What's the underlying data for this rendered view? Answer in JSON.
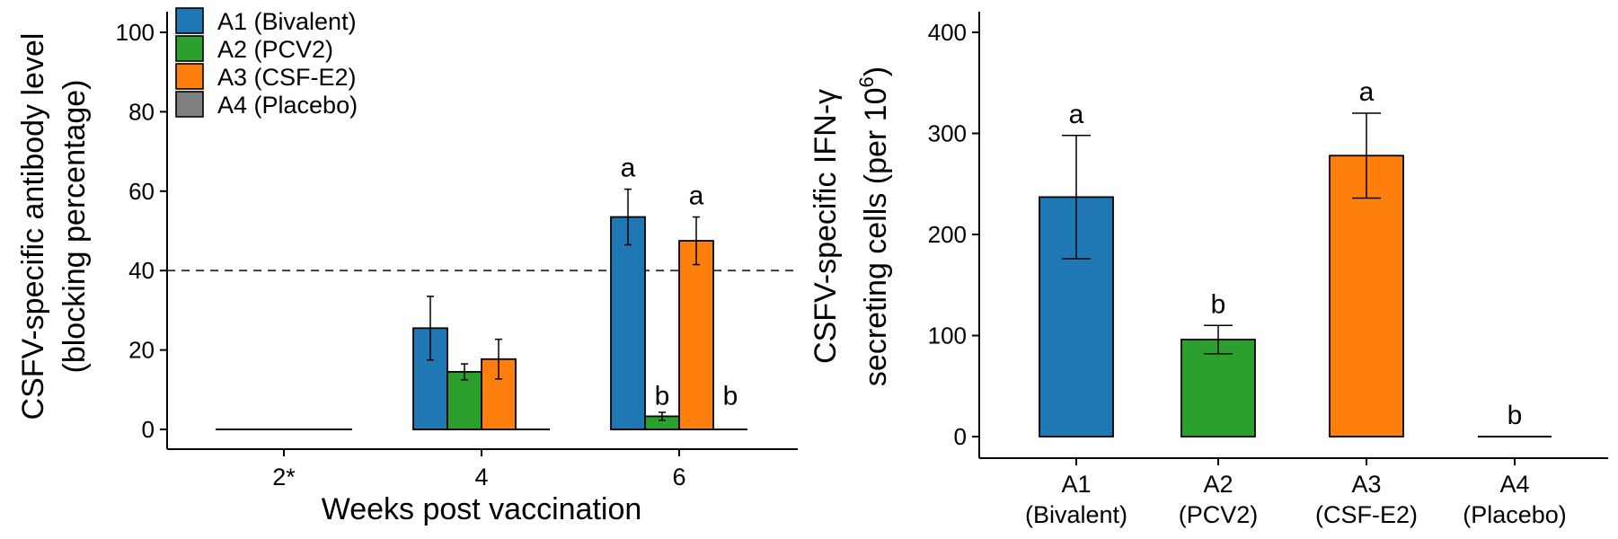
{
  "chart_data": [
    {
      "type": "bar",
      "panel": "left",
      "xlabel": "Weeks post vaccination",
      "ylabel_lines": [
        "CSFV-specific antibody level",
        "(blocking percentage)"
      ],
      "categories": [
        "2*",
        "4",
        "6"
      ],
      "ylim": [
        0,
        100
      ],
      "yticks": [
        0,
        20,
        40,
        60,
        80,
        100
      ],
      "reference_line": 40,
      "legend_position": "top-left",
      "grid": false,
      "series": [
        {
          "name": "A1 (Bivalent)",
          "color": "#1f77b4",
          "values": [
            0,
            25.5,
            53.5
          ],
          "errors": [
            0,
            8,
            7
          ]
        },
        {
          "name": "A2 (PCV2)",
          "color": "#2ca02c",
          "values": [
            0,
            14.5,
            3.3
          ],
          "errors": [
            0,
            2,
            1
          ]
        },
        {
          "name": "A3 (CSF-E2)",
          "color": "#ff7f0e",
          "values": [
            0,
            17.7,
            47.5
          ],
          "errors": [
            0,
            5,
            6
          ]
        },
        {
          "name": "A4 (Placebo)",
          "color": "#7f7f7f",
          "values": [
            0,
            0,
            0
          ],
          "errors": [
            0,
            0,
            0
          ]
        }
      ],
      "letters": [
        {
          "category": "6",
          "series": "A1 (Bivalent)",
          "text": "a"
        },
        {
          "category": "6",
          "series": "A2 (PCV2)",
          "text": "b"
        },
        {
          "category": "6",
          "series": "A3 (CSF-E2)",
          "text": "a"
        },
        {
          "category": "6",
          "series": "A4 (Placebo)",
          "text": "b"
        }
      ]
    },
    {
      "type": "bar",
      "panel": "right",
      "ylabel_line1": "CSFV-specific IFN-γ",
      "ylabel_line2": "secreting cells (per 10",
      "ylabel_sup": "6",
      "ylabel_close": ")",
      "ylim": [
        0,
        400
      ],
      "yticks": [
        0,
        100,
        200,
        300,
        400
      ],
      "grid": false,
      "categories": [
        {
          "line1": "A1",
          "line2": "(Bivalent)"
        },
        {
          "line1": "A2",
          "line2": "(PCV2)"
        },
        {
          "line1": "A3",
          "line2": "(CSF-E2)"
        },
        {
          "line1": "A4",
          "line2": "(Placebo)"
        }
      ],
      "values": [
        237,
        96,
        278,
        0
      ],
      "errors": [
        61,
        14,
        42,
        0
      ],
      "colors": [
        "#1f77b4",
        "#2ca02c",
        "#ff7f0e",
        "#7f7f7f"
      ],
      "letters": [
        "a",
        "b",
        "a",
        "b"
      ]
    }
  ]
}
